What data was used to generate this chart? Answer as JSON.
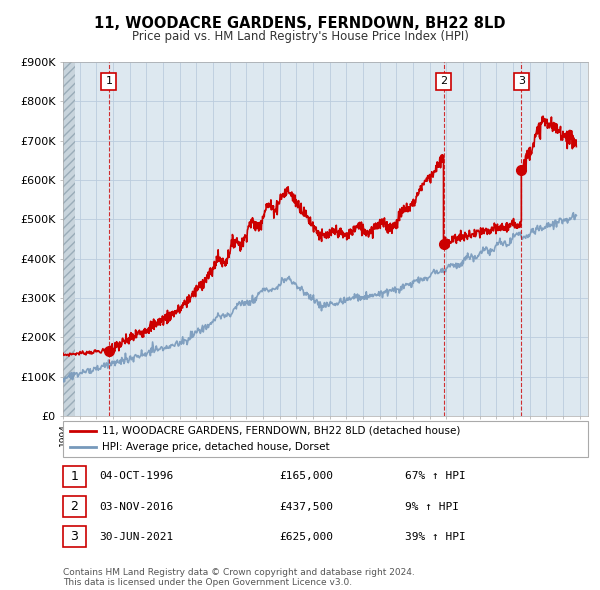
{
  "title": "11, WOODACRE GARDENS, FERNDOWN, BH22 8LD",
  "subtitle": "Price paid vs. HM Land Registry's House Price Index (HPI)",
  "ylim": [
    0,
    900000
  ],
  "yticks": [
    0,
    100000,
    200000,
    300000,
    400000,
    500000,
    600000,
    700000,
    800000,
    900000
  ],
  "ytick_labels": [
    "£0",
    "£100K",
    "£200K",
    "£300K",
    "£400K",
    "£500K",
    "£600K",
    "£700K",
    "£800K",
    "£900K"
  ],
  "xlim_start": 1994.0,
  "xlim_end": 2025.5,
  "transactions": [
    {
      "num": 1,
      "date": "04-OCT-1996",
      "price": 165000,
      "year": 1996.75,
      "hpi_pct": "67%"
    },
    {
      "num": 2,
      "date": "03-NOV-2016",
      "price": 437500,
      "year": 2016.83,
      "hpi_pct": "9%"
    },
    {
      "num": 3,
      "date": "30-JUN-2021",
      "price": 625000,
      "year": 2021.5,
      "hpi_pct": "39%"
    }
  ],
  "legend_property": "11, WOODACRE GARDENS, FERNDOWN, BH22 8LD (detached house)",
  "legend_hpi": "HPI: Average price, detached house, Dorset",
  "footer1": "Contains HM Land Registry data © Crown copyright and database right 2024.",
  "footer2": "This data is licensed under the Open Government Licence v3.0.",
  "red_color": "#cc0000",
  "blue_color": "#7799bb",
  "grid_color": "#bbccdd",
  "bg_color": "#dde8f0",
  "hatch_color": "#c0c8d0"
}
